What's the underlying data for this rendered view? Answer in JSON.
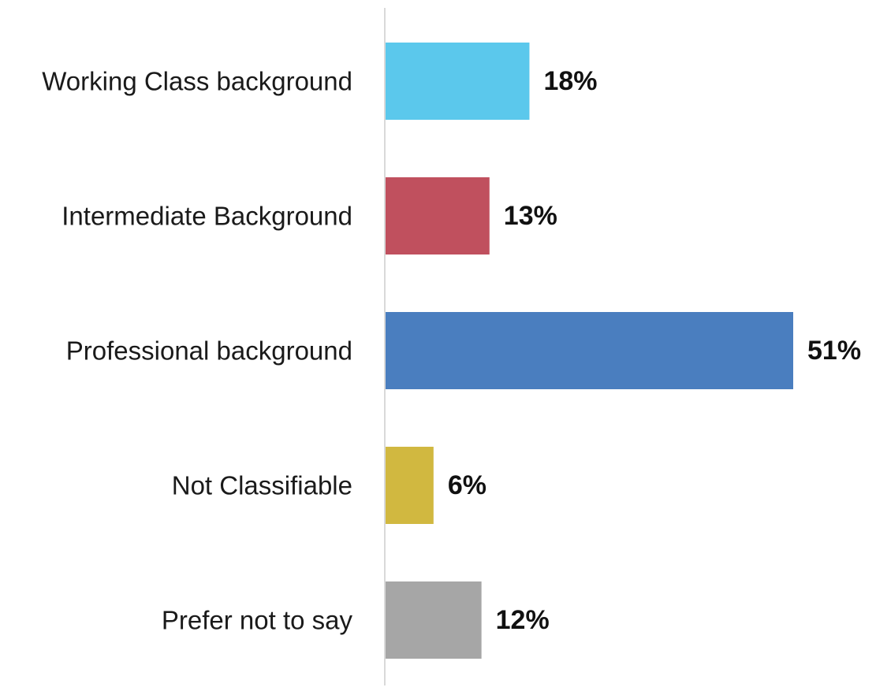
{
  "chart_data": {
    "type": "bar",
    "orientation": "horizontal",
    "title": "",
    "xlabel": "",
    "ylabel": "",
    "categories": [
      "Working Class background",
      "Intermediate Background",
      "Professional background",
      "Not Classifiable",
      "Prefer not to say"
    ],
    "values": [
      18,
      13,
      51,
      6,
      12
    ],
    "value_labels": [
      "18%",
      "13%",
      "51%",
      "6%",
      "12%"
    ],
    "colors": [
      "#5bc8ec",
      "#c0505e",
      "#4a7ebf",
      "#d1b840",
      "#a6a6a6"
    ],
    "xlim": [
      0,
      51
    ],
    "grid": false,
    "legend": "none",
    "axis_line_color": "#d9d9d9"
  }
}
